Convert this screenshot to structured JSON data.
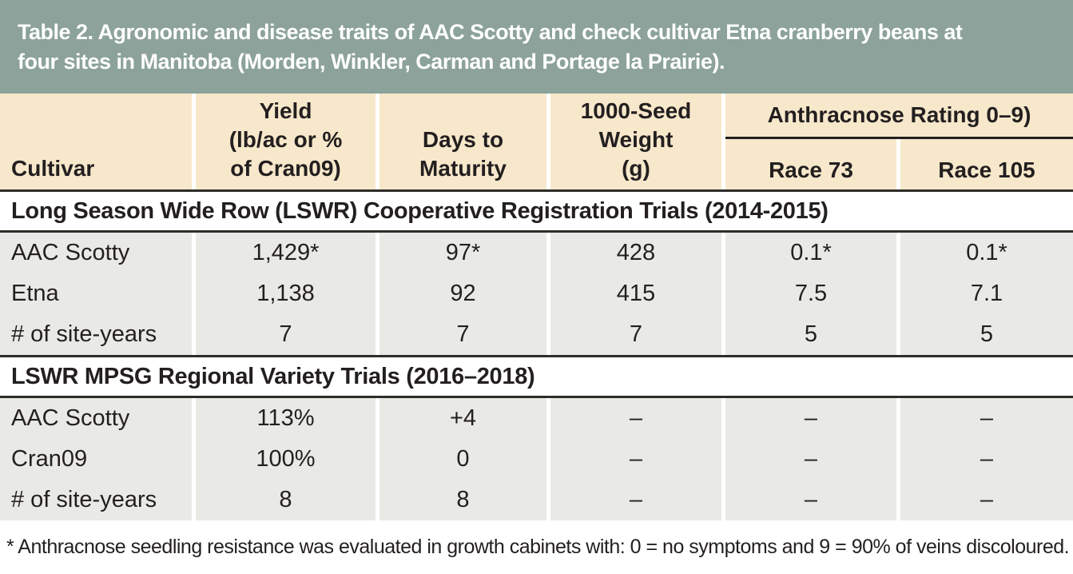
{
  "title_lines": [
    "Table 2. Agronomic and disease traits of AAC Scotty and check cultivar Etna cranberry beans at",
    "four sites in Manitoba (Morden, Winkler, Carman and Portage la Prairie)."
  ],
  "header": {
    "cultivar": "Cultivar",
    "yield_lines": [
      "Yield",
      "(lb/ac or %",
      "of Cran09)"
    ],
    "days_lines": [
      "Days to",
      "Maturity"
    ],
    "seed_lines": [
      "1000-Seed",
      "Weight",
      "(g)"
    ],
    "anthracnose": "Anthracnose Rating 0–9)",
    "race73": "Race 73",
    "race105": "Race 105"
  },
  "sections": [
    {
      "header": "Long Season Wide Row (LSWR) Cooperative Registration Trials (2014-2015)",
      "rows": [
        {
          "cultivar": "AAC Scotty",
          "yield": "1,429*",
          "days": "97*",
          "seed_weight": "428",
          "race73": "0.1*",
          "race105": "0.1*"
        },
        {
          "cultivar": "Etna",
          "yield": "1,138",
          "days": "92",
          "seed_weight": "415",
          "race73": "7.5",
          "race105": "7.1"
        },
        {
          "cultivar": "# of site-years",
          "yield": "7",
          "days": "7",
          "seed_weight": "7",
          "race73": "5",
          "race105": "5"
        }
      ]
    },
    {
      "header": "LSWR MPSG Regional Variety Trials (2016–2018)",
      "rows": [
        {
          "cultivar": "AAC Scotty",
          "yield": "113%",
          "days": "+4",
          "seed_weight": "–",
          "race73": "–",
          "race105": "–"
        },
        {
          "cultivar": "Cran09",
          "yield": "100%",
          "days": "0",
          "seed_weight": "–",
          "race73": "–",
          "race105": "–"
        },
        {
          "cultivar": "# of site-years",
          "yield": "8",
          "days": "8",
          "seed_weight": "–",
          "race73": "–",
          "race105": "–"
        }
      ]
    }
  ],
  "footnote": "* Anthracnose seedling resistance was evaluated in growth cabinets with: 0 = no symptoms and 9 = 90% of veins discoloured.",
  "colors": {
    "title_bg": "#8CA29A",
    "title_text": "#FFFFFF",
    "header_bg": "#F7E8CB",
    "row_bg": "#E9E9E6",
    "rule": "#2E2D28",
    "text": "#231F20"
  }
}
